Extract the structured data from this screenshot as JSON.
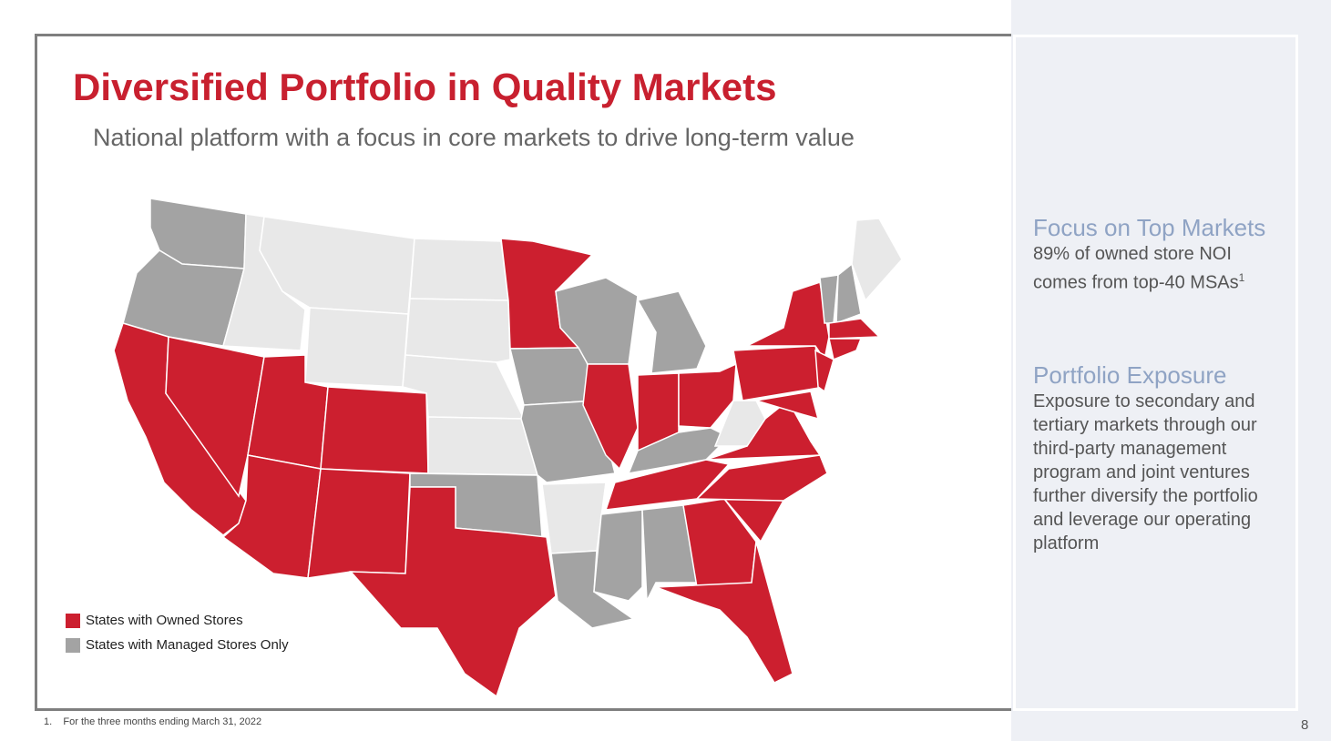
{
  "header": {
    "title": "Diversified Portfolio in Quality Markets",
    "subtitle": "National platform with a focus in core markets to drive long-term value"
  },
  "legend": {
    "items": [
      "States with Owned Stores",
      "States with Managed Stores Only"
    ]
  },
  "sidebar": {
    "sections": [
      {
        "heading": "Focus on Top Markets",
        "lines": [
          "89% of owned store NOI",
          "comes from top-40 MSAs"
        ],
        "superscript": "1"
      },
      {
        "heading": "Portfolio Exposure",
        "lines": [
          "Exposure to secondary and",
          "tertiary markets through our",
          "third-party management",
          "program and joint ventures",
          "further diversify the portfolio",
          "and leverage our operating",
          "platform"
        ]
      }
    ]
  },
  "footnote": {
    "marker": "1.",
    "text": "For the three months ending March 31, 2022"
  },
  "page_number": "8"
}
